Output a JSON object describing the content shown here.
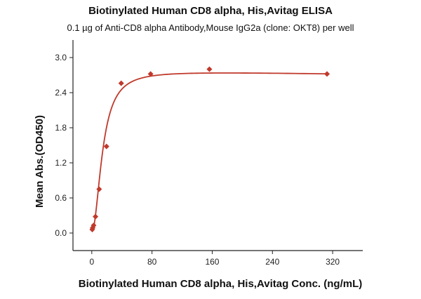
{
  "chart_data": {
    "type": "scatter",
    "title": "Biotinylated Human CD8 alpha, His,Avitag ELISA",
    "subtitle": "0.1 µg of Anti-CD8 alpha Antibody,Mouse IgG2a (clone: OKT8) per well",
    "xlabel": "Biotinylated Human CD8 alpha, His,Avitag Conc. (ng/mL)",
    "ylabel": "Mean Abs.(OD450)",
    "xlim": [
      -25,
      360
    ],
    "ylim": [
      -0.3,
      3.3
    ],
    "x_ticks": [
      0,
      80,
      160,
      240,
      320
    ],
    "y_ticks": [
      0.0,
      0.6,
      1.2,
      1.8,
      2.4,
      3.0
    ],
    "x_tick_labels": [
      "0",
      "80",
      "160",
      "240",
      "320"
    ],
    "y_tick_labels": [
      "0.0",
      "0.6",
      "1.2",
      "1.8",
      "2.4",
      "3.0"
    ],
    "grid": false,
    "colors": {
      "series": "#c0392b",
      "axis": "#222222"
    },
    "series": [
      {
        "marker": "diamond",
        "x": [
          0.61,
          1.22,
          2.44,
          4.88,
          9.77,
          19.53,
          39.06,
          78.13,
          156.25,
          312.5
        ],
        "y": [
          0.06,
          0.09,
          0.13,
          0.28,
          0.75,
          1.48,
          2.56,
          2.72,
          2.8,
          2.72
        ]
      }
    ],
    "fit_curve": {
      "type": "4PL",
      "bottom": 0.02,
      "top": 2.79,
      "ec50": 14.5,
      "hill": 2.0,
      "slope": -0.0002
    }
  }
}
